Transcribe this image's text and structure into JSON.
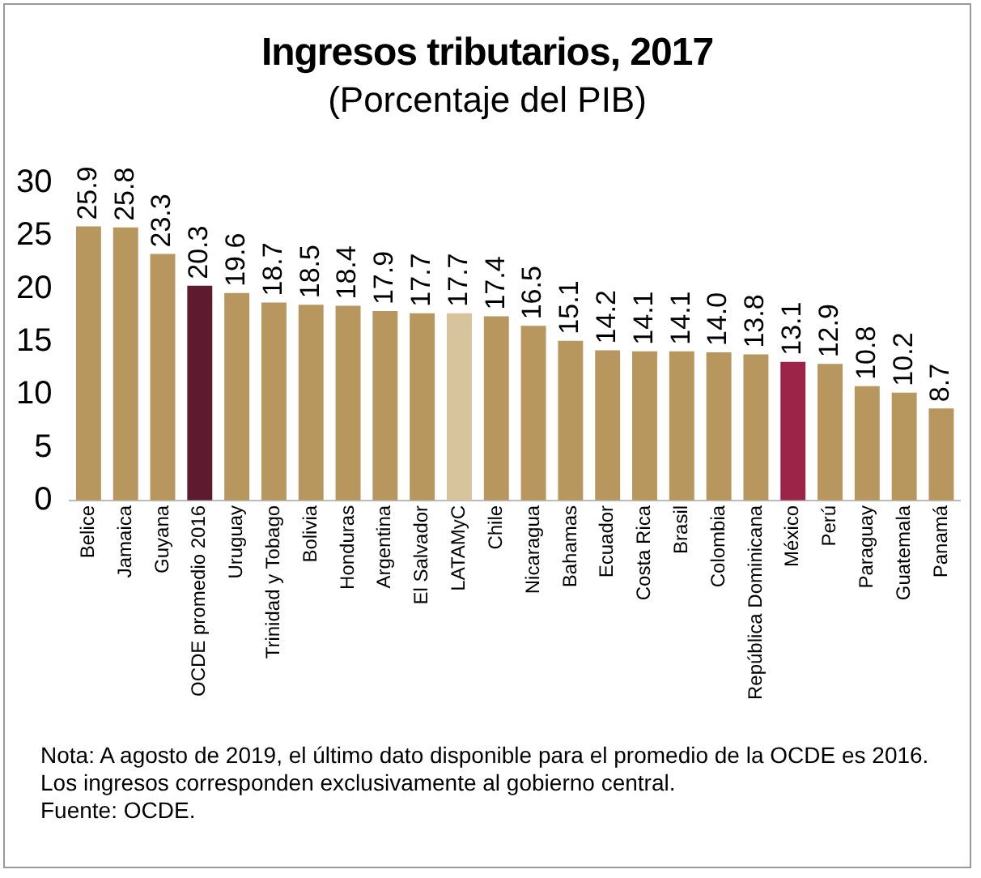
{
  "chart_data": {
    "type": "bar",
    "title": "Ingresos tributarios, 2017",
    "subtitle": "(Porcentaje del PIB)",
    "categories": [
      "Belice",
      "Jamaica",
      "Guyana",
      "OCDE promedio 2016",
      "Uruguay",
      "Trinidad y Tobago",
      "Bolivia",
      "Honduras",
      "Argentina",
      "El Salvador",
      "LATAMyC",
      "Chile",
      "Nicaragua",
      "Bahamas",
      "Ecuador",
      "Costa Rica",
      "Brasil",
      "Colombia",
      "República Dominicana",
      "México",
      "Perú",
      "Paraguay",
      "Guatemala",
      "Panamá"
    ],
    "values": [
      25.9,
      25.8,
      23.3,
      20.3,
      19.6,
      18.7,
      18.5,
      18.4,
      17.9,
      17.7,
      17.7,
      17.4,
      16.5,
      15.1,
      14.2,
      14.1,
      14.1,
      14.0,
      13.8,
      13.1,
      12.9,
      10.8,
      10.2,
      8.7
    ],
    "value_labels": [
      "25.9",
      "25.8",
      "23.3",
      "20.3",
      "19.6",
      "18.7",
      "18.5",
      "18.4",
      "17.9",
      "17.7",
      "17.7",
      "17.4",
      "16.5",
      "15.1",
      "14.2",
      "14.1",
      "14.1",
      "14.0",
      "13.8",
      "13.1",
      "12.9",
      "10.8",
      "10.2",
      "8.7"
    ],
    "colors": [
      "#b8975f",
      "#b8975f",
      "#b8975f",
      "#5e1a2f",
      "#b8975f",
      "#b8975f",
      "#b8975f",
      "#b8975f",
      "#b8975f",
      "#b8975f",
      "#d8c49c",
      "#b8975f",
      "#b8975f",
      "#b8975f",
      "#b8975f",
      "#b8975f",
      "#b8975f",
      "#b8975f",
      "#b8975f",
      "#9d2449",
      "#b8975f",
      "#b8975f",
      "#b8975f",
      "#b8975f"
    ],
    "ylim": [
      0,
      30
    ],
    "yticks": [
      0,
      5,
      10,
      15,
      20,
      25,
      30
    ],
    "grid": false,
    "legend": false,
    "annotations": [
      "Nota: A agosto de 2019, el último dato disponible para el promedio de la OCDE es 2016. Los ingresos corresponden exclusivamente al gobierno central.",
      "Fuente: OCDE."
    ]
  }
}
